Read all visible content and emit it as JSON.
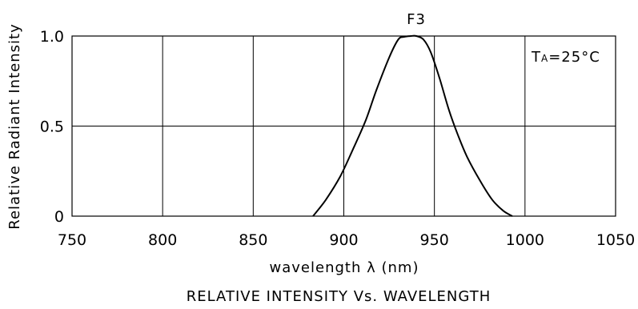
{
  "chart_data": {
    "type": "line",
    "title": "RELATIVE INTENSITY Vs. WAVELENGTH",
    "xlabel": "wavelength λ (nm)",
    "ylabel": "Relative Radiant Intensity",
    "xlim": [
      750,
      1050
    ],
    "ylim": [
      0,
      1.0
    ],
    "x_ticks": [
      "750",
      "800",
      "850",
      "900",
      "950",
      "1000",
      "1050"
    ],
    "y_ticks": [
      "0",
      "0.5",
      "1.0"
    ],
    "grid": true,
    "annotations": {
      "curve_label": "F3",
      "condition_main": "T",
      "condition_sub": "A",
      "condition_rest": "=25°C"
    },
    "series": [
      {
        "name": "F3",
        "x": [
          883,
          890,
          898,
          905,
          912,
          918,
          925,
          930,
          933,
          937,
          940,
          944,
          948,
          953,
          958,
          963,
          968,
          975,
          982,
          988,
          993
        ],
        "y": [
          0.0,
          0.09,
          0.22,
          0.37,
          0.53,
          0.7,
          0.88,
          0.98,
          0.995,
          1.0,
          1.0,
          0.98,
          0.91,
          0.76,
          0.59,
          0.45,
          0.33,
          0.2,
          0.09,
          0.03,
          0.0
        ]
      }
    ]
  }
}
